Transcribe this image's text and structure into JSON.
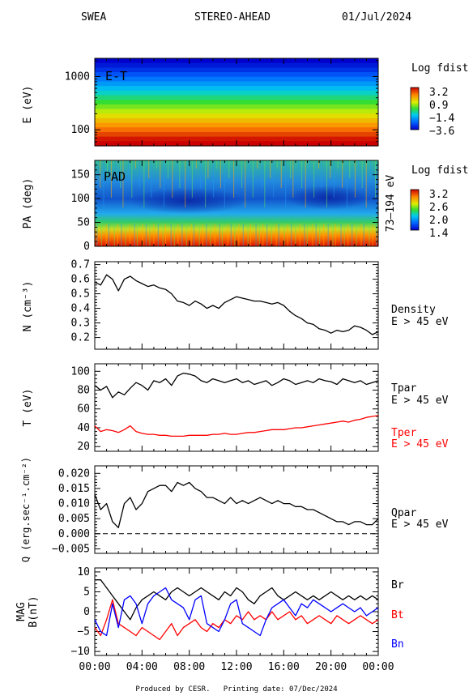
{
  "header": {
    "instrument": "SWEA",
    "spacecraft": "STEREO-AHEAD",
    "date": "01/Jul/2024"
  },
  "footer": "Produced by CESR.   Printing date: 07/Dec/2024",
  "x_axis": {
    "ticks": [
      "00:00",
      "04:00",
      "08:00",
      "12:00",
      "16:00",
      "20:00",
      "00:00"
    ],
    "range_hours": [
      0,
      24
    ]
  },
  "chart_data": [
    {
      "id": "et",
      "type": "heatmap",
      "panel_label": "E-T",
      "ylabel": "E (eV)",
      "yscale": "log",
      "ylim": [
        50,
        2200
      ],
      "yticks": [
        1000,
        100
      ],
      "ytick_labels": [
        "1000",
        "100"
      ],
      "colorbar": {
        "title": "Log fdist",
        "range": [
          -3.6,
          3.2
        ],
        "tick_labels": [
          "3.2",
          "0.9",
          "−1.4",
          "−3.6"
        ]
      },
      "bands_high_to_low_energy": [
        -3.6,
        -3.3,
        -3.0,
        -2.6,
        -2.2,
        -1.8,
        -1.4,
        -1.0,
        -0.6,
        -0.2,
        0.2,
        0.6,
        1.0,
        1.4,
        1.8,
        2.2,
        2.6,
        3.0,
        3.2
      ]
    },
    {
      "id": "pad",
      "type": "heatmap",
      "panel_label": "PAD",
      "ylabel": "PA (deg)",
      "ylim": [
        0,
        180
      ],
      "yticks": [
        150,
        100,
        50,
        0
      ],
      "right_label": "73–194 eV",
      "colorbar": {
        "title": "Log fdist",
        "range": [
          1.4,
          3.2
        ],
        "tick_labels": [
          "3.2",
          "2.6",
          "2.0",
          "1.4"
        ]
      }
    },
    {
      "id": "density",
      "type": "line",
      "ylabel": "N (cm⁻³)",
      "ylim": [
        0.12,
        0.72
      ],
      "yticks": [
        0.7,
        0.6,
        0.5,
        0.4,
        0.3,
        0.2
      ],
      "ytick_labels": [
        "0.7",
        "0.6",
        "0.5",
        "0.4",
        "0.3",
        "0.2"
      ],
      "series": [
        {
          "name": "Density",
          "sublabel": "E > 45 eV",
          "color": "#000000",
          "x": [
            0,
            0.5,
            1,
            1.5,
            2,
            2.5,
            3,
            3.5,
            4,
            4.5,
            5,
            5.5,
            6,
            6.5,
            7,
            7.5,
            8,
            8.5,
            9,
            9.5,
            10,
            10.5,
            11,
            11.5,
            12,
            12.5,
            13,
            13.5,
            14,
            14.5,
            15,
            15.5,
            16,
            16.5,
            17,
            17.5,
            18,
            18.5,
            19,
            19.5,
            20,
            20.5,
            21,
            21.5,
            22,
            22.5,
            23,
            23.5,
            24
          ],
          "y": [
            0.58,
            0.56,
            0.63,
            0.6,
            0.52,
            0.6,
            0.62,
            0.59,
            0.57,
            0.55,
            0.56,
            0.54,
            0.53,
            0.5,
            0.45,
            0.44,
            0.42,
            0.45,
            0.43,
            0.4,
            0.42,
            0.4,
            0.44,
            0.46,
            0.48,
            0.47,
            0.46,
            0.45,
            0.45,
            0.44,
            0.43,
            0.44,
            0.42,
            0.38,
            0.35,
            0.33,
            0.3,
            0.29,
            0.26,
            0.25,
            0.23,
            0.25,
            0.24,
            0.25,
            0.28,
            0.27,
            0.25,
            0.22,
            0.24
          ]
        }
      ]
    },
    {
      "id": "temperature",
      "type": "line",
      "ylabel": "T (eV)",
      "ylim": [
        15,
        108
      ],
      "yticks": [
        100,
        80,
        60,
        40,
        20
      ],
      "series": [
        {
          "name": "Tpar",
          "sublabel": "E > 45 eV",
          "color": "#000000",
          "x": [
            0,
            0.5,
            1,
            1.5,
            2,
            2.5,
            3,
            3.5,
            4,
            4.5,
            5,
            5.5,
            6,
            6.5,
            7,
            7.5,
            8,
            8.5,
            9,
            9.5,
            10,
            10.5,
            11,
            11.5,
            12,
            12.5,
            13,
            13.5,
            14,
            14.5,
            15,
            15.5,
            16,
            16.5,
            17,
            17.5,
            18,
            18.5,
            19,
            19.5,
            20,
            20.5,
            21,
            21.5,
            22,
            22.5,
            23,
            23.5,
            24
          ],
          "y": [
            85,
            80,
            84,
            72,
            78,
            75,
            82,
            88,
            85,
            80,
            90,
            88,
            92,
            85,
            95,
            98,
            97,
            95,
            90,
            88,
            92,
            90,
            88,
            90,
            92,
            88,
            90,
            86,
            88,
            90,
            85,
            88,
            92,
            90,
            86,
            88,
            90,
            88,
            92,
            90,
            89,
            86,
            92,
            90,
            88,
            90,
            86,
            88,
            90
          ]
        },
        {
          "name": "Tper",
          "sublabel": "E > 45 eV",
          "color": "#ff0000",
          "x": [
            0,
            0.5,
            1,
            1.5,
            2,
            2.5,
            3,
            3.5,
            4,
            4.5,
            5,
            5.5,
            6,
            6.5,
            7,
            7.5,
            8,
            8.5,
            9,
            9.5,
            10,
            10.5,
            11,
            11.5,
            12,
            12.5,
            13,
            13.5,
            14,
            14.5,
            15,
            15.5,
            16,
            16.5,
            17,
            17.5,
            18,
            18.5,
            19,
            19.5,
            20,
            20.5,
            21,
            21.5,
            22,
            22.5,
            23,
            23.5,
            24
          ],
          "y": [
            42,
            36,
            38,
            37,
            35,
            38,
            42,
            36,
            34,
            33,
            33,
            32,
            32,
            31,
            31,
            31,
            32,
            32,
            32,
            32,
            33,
            33,
            34,
            33,
            33,
            34,
            35,
            35,
            36,
            37,
            38,
            38,
            38,
            39,
            40,
            40,
            41,
            42,
            43,
            44,
            45,
            46,
            47,
            46,
            48,
            49,
            51,
            52,
            53
          ]
        }
      ]
    },
    {
      "id": "heatflux",
      "type": "line",
      "ylabel": "Q (erg.sec⁻¹.cm⁻²)",
      "ylim": [
        -0.0065,
        0.0225
      ],
      "yticks": [
        0.02,
        0.015,
        0.01,
        0.005,
        0.0,
        -0.005
      ],
      "ytick_labels": [
        "0.020",
        "0.015",
        "0.010",
        "0.005",
        "0.000",
        "−0.005"
      ],
      "series": [
        {
          "name": "Qpar",
          "sublabel": "E > 45 eV",
          "color": "#000000",
          "x": [
            0,
            0.5,
            1,
            1.5,
            2,
            2.5,
            3,
            3.5,
            4,
            4.5,
            5,
            5.5,
            6,
            6.5,
            7,
            7.5,
            8,
            8.5,
            9,
            9.5,
            10,
            10.5,
            11,
            11.5,
            12,
            12.5,
            13,
            13.5,
            14,
            14.5,
            15,
            15.5,
            16,
            16.5,
            17,
            17.5,
            18,
            18.5,
            19,
            19.5,
            20,
            20.5,
            21,
            21.5,
            22,
            22.5,
            23,
            23.5,
            24
          ],
          "y": [
            0.013,
            0.008,
            0.01,
            0.004,
            0.002,
            0.01,
            0.012,
            0.008,
            0.01,
            0.014,
            0.015,
            0.016,
            0.016,
            0.014,
            0.017,
            0.016,
            0.017,
            0.015,
            0.014,
            0.012,
            0.012,
            0.011,
            0.01,
            0.012,
            0.01,
            0.011,
            0.01,
            0.011,
            0.012,
            0.011,
            0.01,
            0.011,
            0.01,
            0.01,
            0.009,
            0.009,
            0.008,
            0.008,
            0.007,
            0.006,
            0.005,
            0.004,
            0.004,
            0.003,
            0.004,
            0.004,
            0.003,
            0.003,
            0.005
          ]
        }
      ],
      "reference_line": {
        "y": 0.0,
        "style": "dashed"
      }
    },
    {
      "id": "mag",
      "type": "line",
      "ylabel": "MAG",
      "ylabel2": "B(nT)",
      "ylim": [
        -11,
        11
      ],
      "yticks": [
        10,
        5,
        0,
        -5,
        -10
      ],
      "ytick_labels": [
        "10",
        "5",
        "0",
        "−5",
        "−10"
      ],
      "series": [
        {
          "name": "Br",
          "color": "#000000",
          "x": [
            0,
            0.5,
            1,
            1.5,
            2,
            2.5,
            3,
            3.5,
            4,
            4.5,
            5,
            5.5,
            6,
            6.5,
            7,
            7.5,
            8,
            8.5,
            9,
            9.5,
            10,
            10.5,
            11,
            11.5,
            12,
            12.5,
            13,
            13.5,
            14,
            14.5,
            15,
            15.5,
            16,
            16.5,
            17,
            17.5,
            18,
            18.5,
            19,
            19.5,
            20,
            20.5,
            21,
            21.5,
            22,
            22.5,
            23,
            23.5,
            24
          ],
          "y": [
            8,
            8,
            6,
            4,
            2,
            0,
            -2,
            1,
            3,
            4,
            5,
            4,
            3,
            5,
            6,
            5,
            4,
            5,
            6,
            5,
            4,
            3,
            5,
            4,
            6,
            5,
            3,
            2,
            4,
            5,
            6,
            4,
            3,
            4,
            5,
            4,
            3,
            4,
            3,
            4,
            5,
            4,
            3,
            4,
            3,
            4,
            3,
            4,
            3
          ]
        },
        {
          "name": "Bt",
          "color": "#ff0000",
          "x": [
            0,
            0.5,
            1,
            1.5,
            2,
            2.5,
            3,
            3.5,
            4,
            4.5,
            5,
            5.5,
            6,
            6.5,
            7,
            7.5,
            8,
            8.5,
            9,
            9.5,
            10,
            10.5,
            11,
            11.5,
            12,
            12.5,
            13,
            13.5,
            14,
            14.5,
            15,
            15.5,
            16,
            16.5,
            17,
            17.5,
            18,
            18.5,
            19,
            19.5,
            20,
            20.5,
            21,
            21.5,
            22,
            22.5,
            23,
            23.5,
            24
          ],
          "y": [
            -4,
            -6,
            -2,
            3,
            -3,
            -4,
            -5,
            -6,
            -4,
            -5,
            -6,
            -7,
            -5,
            -3,
            -6,
            -4,
            -3,
            -2,
            -4,
            -5,
            -3,
            -4,
            -2,
            -3,
            -1,
            -2,
            0,
            -2,
            -1,
            -2,
            0,
            -2,
            -1,
            0,
            -2,
            -1,
            -3,
            -2,
            -1,
            -2,
            -3,
            -1,
            -2,
            -3,
            -2,
            -1,
            -2,
            -3,
            -2
          ]
        },
        {
          "name": "Bn",
          "color": "#0000ff",
          "x": [
            0,
            0.5,
            1,
            1.5,
            2,
            2.5,
            3,
            3.5,
            4,
            4.5,
            5,
            5.5,
            6,
            6.5,
            7,
            7.5,
            8,
            8.5,
            9,
            9.5,
            10,
            10.5,
            11,
            11.5,
            12,
            12.5,
            13,
            13.5,
            14,
            14.5,
            15,
            15.5,
            16,
            16.5,
            17,
            17.5,
            18,
            18.5,
            19,
            19.5,
            20,
            20.5,
            21,
            21.5,
            22,
            22.5,
            23,
            23.5,
            24
          ],
          "y": [
            -2,
            -5,
            -6,
            2,
            -4,
            3,
            4,
            2,
            -3,
            2,
            4,
            5,
            6,
            3,
            2,
            1,
            -2,
            3,
            4,
            -3,
            -4,
            -5,
            -2,
            2,
            3,
            -3,
            -4,
            -5,
            -6,
            -2,
            1,
            2,
            3,
            1,
            -1,
            2,
            1,
            3,
            2,
            1,
            0,
            1,
            2,
            1,
            0,
            1,
            -1,
            0,
            1
          ]
        }
      ]
    }
  ]
}
